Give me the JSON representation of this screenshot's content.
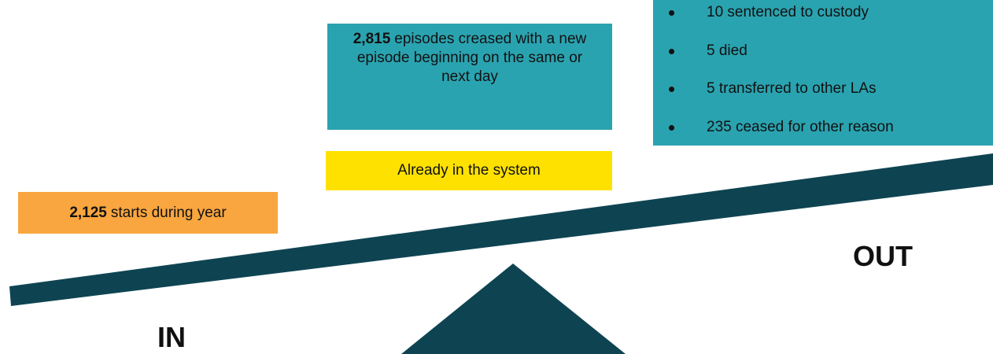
{
  "ceased_box": {
    "number": "2,815",
    "text": "episodes creased with a new episode beginning on the same or next day"
  },
  "out_list": [
    "10 sentenced to custody",
    "5 died",
    "5 transferred to other LAs",
    "235 ceased for other reason"
  ],
  "already_box": "Already in the system",
  "starts_box": {
    "number": "2,125",
    "text": "starts during year"
  },
  "out_label": "OUT",
  "in_label": "IN"
}
